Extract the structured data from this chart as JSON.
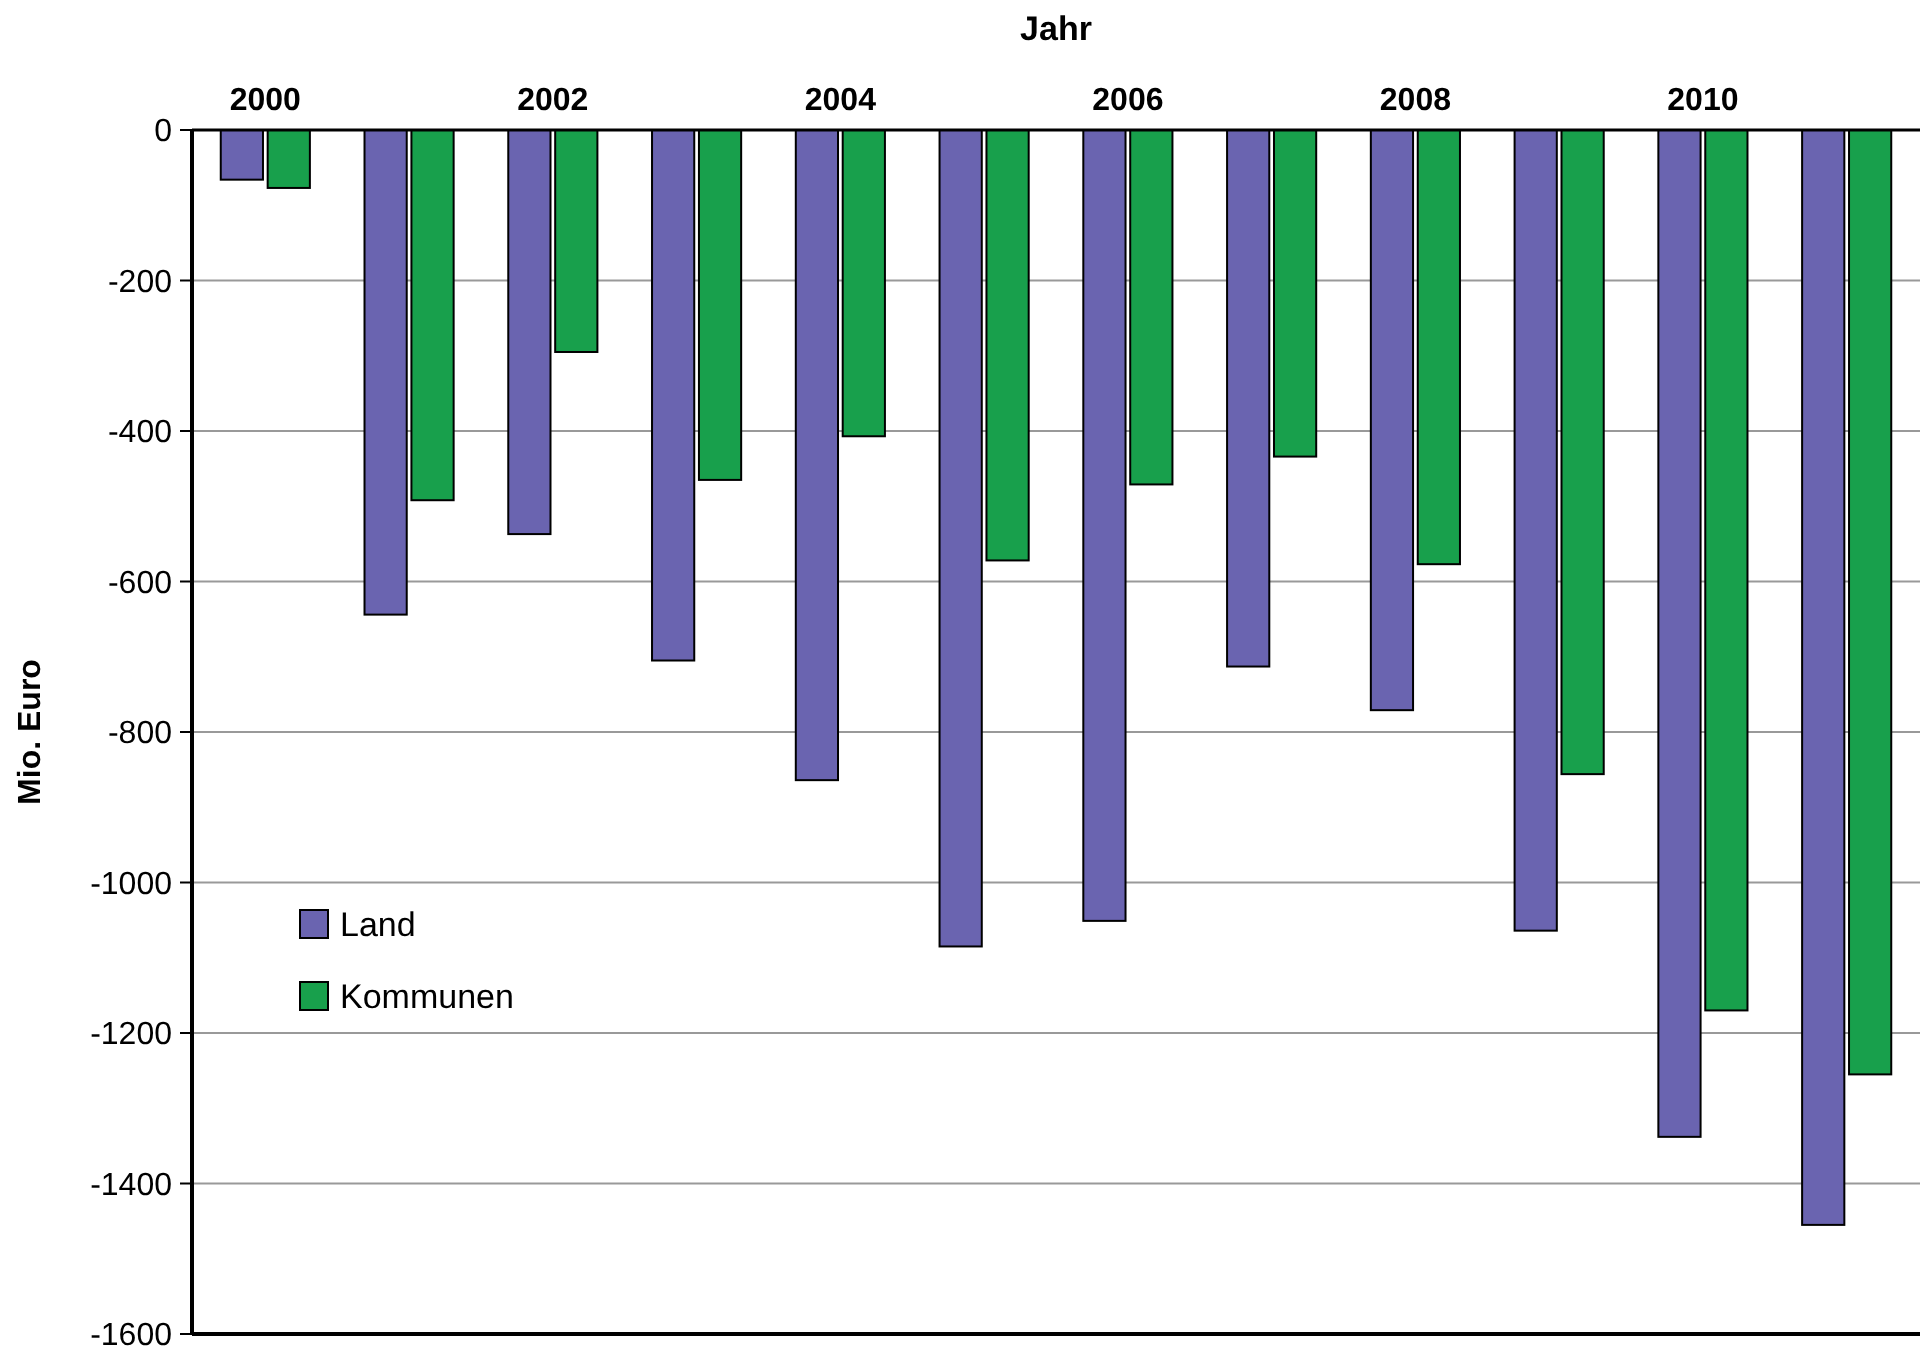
{
  "chart_data": {
    "type": "bar",
    "xlabel": "Jahr",
    "ylabel": "Mio. Euro",
    "categories": [
      "2000",
      null,
      "2002",
      null,
      "2004",
      null,
      "2006",
      null,
      "2008",
      null,
      "2010",
      null
    ],
    "series": [
      {
        "name": "Land",
        "color": "#6a64b0",
        "values": [
          -66,
          -644,
          -537,
          -705,
          -864,
          -1085,
          -1051,
          -713,
          -771,
          -1064,
          -1338,
          -1455
        ]
      },
      {
        "name": "Kommunen",
        "color": "#18a04c",
        "values": [
          -77,
          -492,
          -295,
          -465,
          -407,
          -572,
          -471,
          -434,
          -577,
          -856,
          -1170,
          -1255
        ]
      }
    ],
    "ylim": [
      -1600,
      0
    ],
    "yticks": [
      -1600,
      -1400,
      -1200,
      -1000,
      -800,
      -600,
      -400,
      -200,
      0
    ],
    "grid": "y",
    "legend": "left"
  }
}
